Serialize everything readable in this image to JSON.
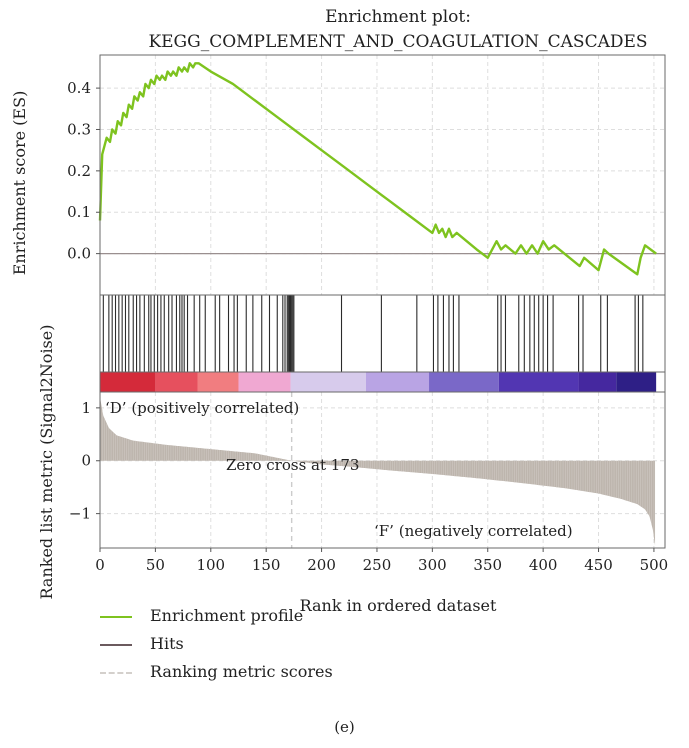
{
  "figure_caption": "(e)",
  "chart_data": {
    "type": "line",
    "title": "Enrichment plot:\nKEGG_COMPLEMENT_AND_COAGULATION_CASCADES",
    "xlabel": "Rank in ordered dataset",
    "xlim": [
      0,
      510
    ],
    "x_ticks": [
      0,
      50,
      100,
      150,
      200,
      250,
      300,
      350,
      400,
      450,
      500
    ],
    "grid": true,
    "legend_placement": "bottom-left",
    "colors": {
      "profile": "#7ec31f",
      "hits": "#2b2b2b",
      "metric": "#bdb5ad",
      "zero_line": "#9a8f8f"
    },
    "panels": {
      "enrichment": {
        "ylabel": "Enrichment score (ES)",
        "ylim": [
          -0.1,
          0.48
        ],
        "y_ticks": [
          0.0,
          0.1,
          0.2,
          0.3,
          0.4
        ],
        "y_tick_labels": [
          "0.0",
          "0.1",
          "0.2",
          "0.3",
          "0.4"
        ],
        "series": [
          {
            "name": "Enrichment profile",
            "x": [
              0,
              2,
              4,
              6,
              9,
              11,
              14,
              16,
              19,
              21,
              24,
              26,
              29,
              31,
              34,
              36,
              39,
              41,
              44,
              46,
              49,
              51,
              54,
              56,
              59,
              61,
              64,
              66,
              69,
              71,
              74,
              76,
              79,
              81,
              84,
              86,
              89,
              100,
              120,
              140,
              160,
              180,
              200,
              220,
              240,
              260,
              280,
              300,
              303,
              306,
              309,
              312,
              315,
              318,
              322,
              340,
              350,
              358,
              362,
              366,
              375,
              380,
              385,
              390,
              395,
              400,
              405,
              410,
              433,
              437,
              450,
              455,
              459,
              485,
              488,
              492,
              502
            ],
            "y": [
              0.08,
              0.24,
              0.26,
              0.28,
              0.27,
              0.3,
              0.29,
              0.32,
              0.31,
              0.34,
              0.33,
              0.36,
              0.35,
              0.38,
              0.37,
              0.39,
              0.38,
              0.41,
              0.4,
              0.42,
              0.41,
              0.43,
              0.42,
              0.43,
              0.42,
              0.44,
              0.43,
              0.44,
              0.43,
              0.45,
              0.44,
              0.45,
              0.44,
              0.46,
              0.45,
              0.46,
              0.46,
              0.44,
              0.41,
              0.37,
              0.33,
              0.29,
              0.25,
              0.21,
              0.17,
              0.13,
              0.09,
              0.05,
              0.07,
              0.05,
              0.06,
              0.04,
              0.06,
              0.04,
              0.05,
              0.01,
              -0.01,
              0.03,
              0.01,
              0.02,
              0.0,
              0.02,
              0.0,
              0.02,
              0.0,
              0.03,
              0.01,
              0.02,
              -0.03,
              -0.01,
              -0.04,
              0.01,
              0.0,
              -0.05,
              -0.01,
              0.02,
              0.0
            ]
          }
        ]
      },
      "hits": {
        "name": "Hits",
        "positions": [
          3,
          8,
          11,
          14,
          17,
          20,
          23,
          26,
          30,
          33,
          36,
          40,
          44,
          46,
          49,
          52,
          55,
          58,
          62,
          65,
          69,
          72,
          74,
          76,
          79,
          85,
          90,
          95,
          104,
          108,
          116,
          121,
          124,
          132,
          138,
          146,
          153,
          160,
          165,
          167,
          169,
          170,
          171,
          172,
          173,
          174,
          175,
          218,
          254,
          286,
          301,
          305,
          310,
          315,
          319,
          324,
          359,
          362,
          366,
          378,
          383,
          388,
          392,
          396,
          400,
          404,
          409,
          432,
          436,
          452,
          458,
          483,
          486,
          490
        ]
      },
      "color_bar": {
        "segments": [
          {
            "from": 0,
            "to": 50,
            "color": "#d42a3a"
          },
          {
            "from": 50,
            "to": 88,
            "color": "#e6505e"
          },
          {
            "from": 88,
            "to": 125,
            "color": "#f17d80"
          },
          {
            "from": 125,
            "to": 172,
            "color": "#f0a8d2"
          },
          {
            "from": 172,
            "to": 240,
            "color": "#d7cbec"
          },
          {
            "from": 240,
            "to": 297,
            "color": "#b9a4e4"
          },
          {
            "from": 297,
            "to": 360,
            "color": "#7a68c8"
          },
          {
            "from": 360,
            "to": 432,
            "color": "#5236b2"
          },
          {
            "from": 432,
            "to": 466,
            "color": "#45289f"
          },
          {
            "from": 466,
            "to": 502,
            "color": "#2e1f86"
          }
        ]
      },
      "metric": {
        "name": "Ranking metric scores",
        "ylabel": "Ranked list metric (Signal2Noise)",
        "ylim": [
          -1.65,
          1.3
        ],
        "y_ticks": [
          -1,
          0,
          1
        ],
        "y_tick_labels": [
          "−1",
          "0",
          "1"
        ],
        "x": [
          0,
          3,
          8,
          15,
          30,
          60,
          100,
          140,
          173,
          200,
          230,
          260,
          300,
          340,
          380,
          420,
          450,
          470,
          485,
          492,
          496,
          499,
          501
        ],
        "values": [
          1.2,
          0.85,
          0.62,
          0.48,
          0.38,
          0.3,
          0.22,
          0.14,
          0.0,
          -0.07,
          -0.12,
          -0.18,
          -0.25,
          -0.33,
          -0.42,
          -0.52,
          -0.62,
          -0.72,
          -0.82,
          -0.92,
          -1.05,
          -1.3,
          -1.6
        ]
      }
    },
    "annotations": [
      {
        "text": "‘D’ (positively correlated)"
      },
      {
        "text": "Zero cross at 173",
        "x": 173
      },
      {
        "text": "‘F’ (negatively correlated)"
      }
    ],
    "legend": [
      "Enrichment profile",
      "Hits",
      "Ranking metric scores"
    ]
  }
}
